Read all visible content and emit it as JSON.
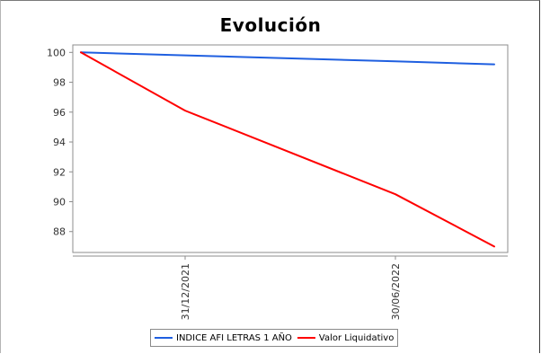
{
  "chart_data": {
    "type": "line",
    "title": "Evolución",
    "xlabel": "",
    "ylabel": "",
    "x_ticks": [
      "31/12/2021",
      "30/06/2022"
    ],
    "y_ticks": [
      88,
      90,
      92,
      94,
      96,
      98,
      100
    ],
    "ylim": [
      86.6,
      100.5
    ],
    "grid": false,
    "legend": "bottom",
    "x": [
      "start",
      "31/12/2021",
      "30/06/2022",
      "end"
    ],
    "series": [
      {
        "name": "INDICE AFI LETRAS 1 AÑO",
        "color": "#1f5fe0",
        "values": [
          100.0,
          99.8,
          99.4,
          99.2
        ]
      },
      {
        "name": "Valor Liquidativo",
        "color": "#ff0000",
        "values": [
          100.0,
          96.1,
          90.5,
          87.0
        ]
      }
    ]
  }
}
